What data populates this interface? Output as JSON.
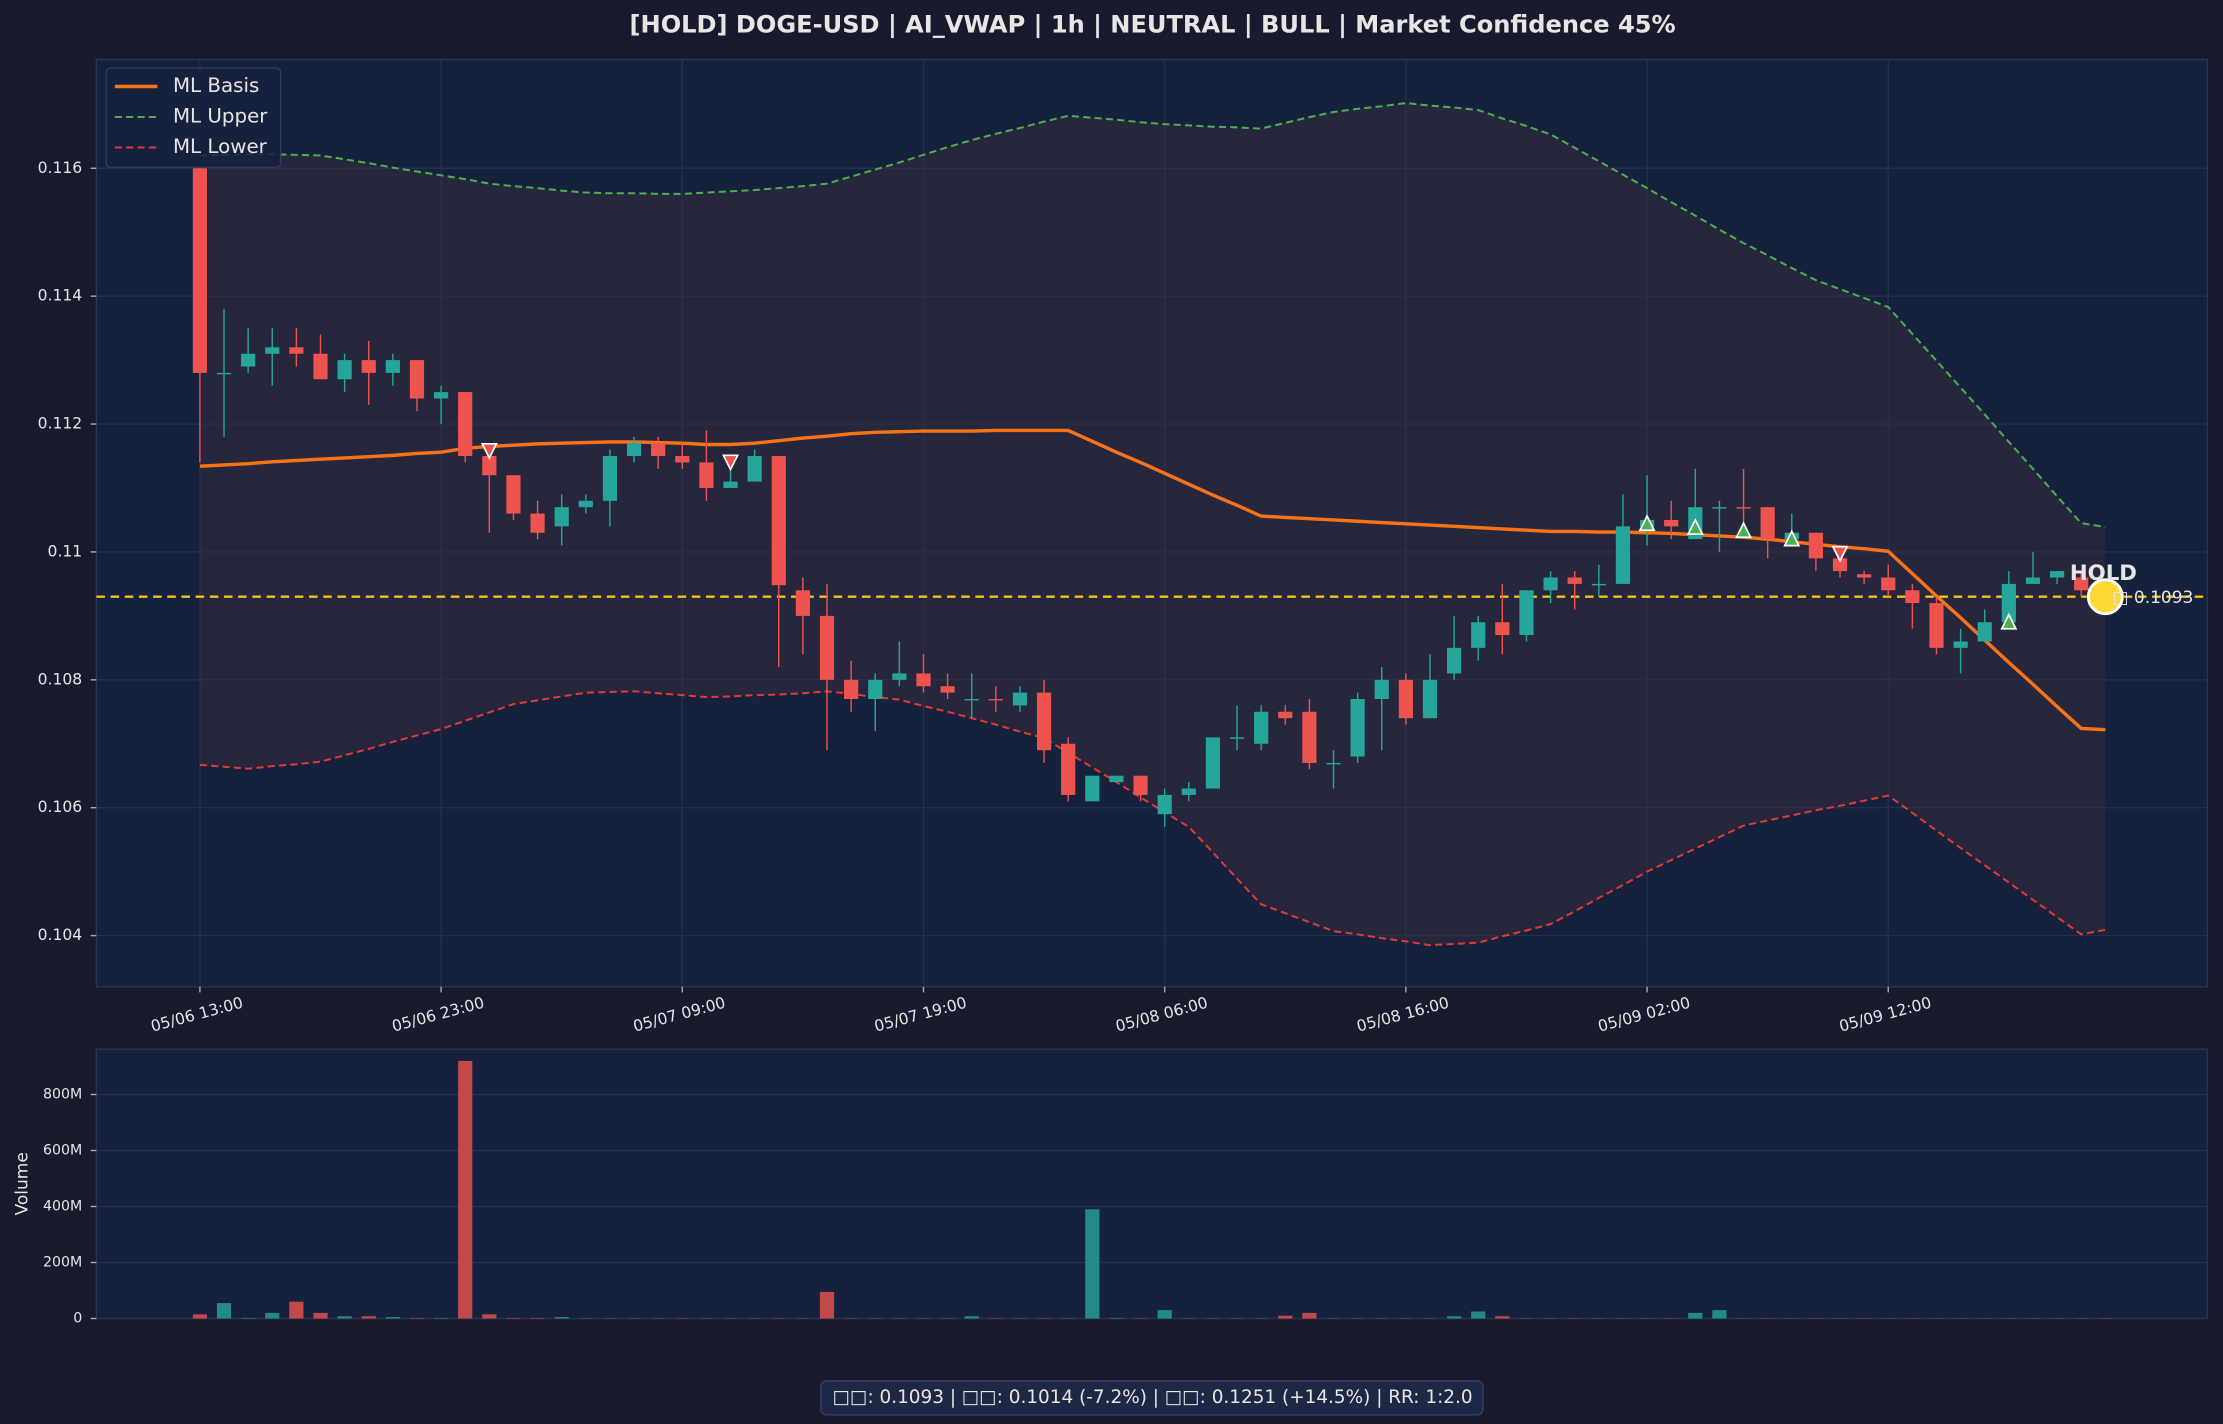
{
  "footer": "□□: 0.1093  |  □□: 0.1014 (-7.2%)  |  □□: 0.1251 (+14.5%)  |  RR: 1:2.0",
  "chart_data": [
    {
      "type": "candlestick",
      "title": "[HOLD] DOGE-USD  |  AI_VWAP | 1h  |  NEUTRAL | BULL  |  Market Confidence 45%",
      "categories": [
        "05/06 13:00",
        null,
        null,
        null,
        null,
        null,
        null,
        null,
        null,
        null,
        "05/06 23:00",
        null,
        null,
        null,
        null,
        null,
        null,
        null,
        null,
        null,
        "05/07 09:00",
        null,
        null,
        null,
        null,
        null,
        null,
        null,
        null,
        null,
        "05/07 19:00",
        null,
        null,
        null,
        null,
        null,
        null,
        null,
        null,
        null,
        "05/08 06:00",
        null,
        null,
        null,
        null,
        null,
        null,
        null,
        null,
        null,
        "05/08 16:00",
        null,
        null,
        null,
        null,
        null,
        null,
        null,
        null,
        null,
        "05/09 02:00",
        null,
        null,
        null,
        null,
        null,
        null,
        null,
        null,
        null,
        "05/09 12:00",
        null,
        null,
        null,
        null,
        null,
        null,
        null,
        null,
        null
      ],
      "open": [
        0.116,
        0.1128,
        0.1129,
        0.1131,
        0.1132,
        0.1131,
        0.1127,
        0.113,
        0.1128,
        0.113,
        0.1124,
        0.1125,
        0.1115,
        0.1112,
        0.1106,
        0.1104,
        0.1107,
        0.1108,
        0.1115,
        0.1117,
        0.1115,
        0.1114,
        0.111,
        0.1111,
        0.1115,
        0.1094,
        0.109,
        0.108,
        0.1077,
        0.108,
        0.1081,
        0.1079,
        0.1077,
        0.1077,
        0.1076,
        0.1078,
        0.107,
        0.1061,
        0.1064,
        0.1065,
        0.1059,
        0.1062,
        0.1063,
        0.1071,
        0.107,
        0.1075,
        0.1075,
        0.1067,
        0.1068,
        0.1077,
        0.108,
        0.1074,
        0.1081,
        0.1085,
        0.1089,
        0.1087,
        0.1094,
        0.1096,
        0.1095,
        0.1095,
        0.1104,
        0.1105,
        0.1102,
        0.1107,
        0.1107,
        0.1107,
        0.1102,
        0.1103,
        0.1099,
        0.10965,
        0.1096,
        0.1094,
        0.1092,
        0.1085,
        0.1086,
        0.1089,
        0.1095,
        0.1096,
        0.1096,
        0.1094
      ],
      "high": [
        0.116,
        0.1138,
        0.1135,
        0.1135,
        0.1135,
        0.1134,
        0.1131,
        0.1133,
        0.1131,
        0.113,
        0.1126,
        0.1125,
        0.1116,
        0.1112,
        0.1108,
        0.1109,
        0.1109,
        0.1116,
        0.1118,
        0.1118,
        0.1117,
        0.1119,
        0.1115,
        0.1116,
        0.1115,
        0.1096,
        0.1095,
        0.1083,
        0.1081,
        0.1086,
        0.1084,
        0.1081,
        0.1081,
        0.1079,
        0.1079,
        0.108,
        0.1071,
        0.1065,
        0.1065,
        0.1065,
        0.1063,
        0.1064,
        0.1071,
        0.1076,
        0.1076,
        0.1076,
        0.1077,
        0.1069,
        0.1078,
        0.1082,
        0.1081,
        0.1084,
        0.109,
        0.109,
        0.1095,
        0.1094,
        0.1097,
        0.1097,
        0.1098,
        0.1109,
        0.1112,
        0.1108,
        0.1113,
        0.1108,
        0.1113,
        0.1107,
        0.1106,
        0.1103,
        0.1099,
        0.1097,
        0.1098,
        0.1095,
        0.1093,
        0.1088,
        0.1091,
        0.1097,
        0.11,
        0.1097,
        0.1097,
        0.1094
      ],
      "low": [
        0.1114,
        0.1118,
        0.1128,
        0.1126,
        0.1129,
        0.1127,
        0.1125,
        0.1123,
        0.1126,
        0.1122,
        0.112,
        0.1114,
        0.1103,
        0.1105,
        0.1102,
        0.1101,
        0.1106,
        0.1104,
        0.1114,
        0.1113,
        0.1113,
        0.1108,
        0.111,
        0.1111,
        0.1082,
        0.1084,
        0.1069,
        0.1075,
        0.1072,
        0.1079,
        0.1078,
        0.1077,
        0.1074,
        0.1075,
        0.1075,
        0.1067,
        0.1061,
        0.1061,
        0.1064,
        0.1061,
        0.1057,
        0.1061,
        0.1063,
        0.1069,
        0.1069,
        0.1073,
        0.1066,
        0.1063,
        0.1067,
        0.1069,
        0.1073,
        0.1074,
        0.108,
        0.1083,
        0.1084,
        0.1086,
        0.1092,
        0.1091,
        0.1093,
        0.1095,
        0.1101,
        0.1102,
        0.1102,
        0.11,
        0.1104,
        0.1099,
        0.1101,
        0.1097,
        0.1096,
        0.1095,
        0.1093,
        0.1088,
        0.1084,
        0.1081,
        0.1086,
        0.1088,
        0.1095,
        0.1095,
        0.1093,
        0.1093
      ],
      "close": [
        0.1128,
        0.1128,
        0.1131,
        0.1132,
        0.1131,
        0.1127,
        0.113,
        0.1128,
        0.113,
        0.1124,
        0.1125,
        0.1115,
        0.1112,
        0.1106,
        0.1103,
        0.1107,
        0.1108,
        0.1115,
        0.1117,
        0.1115,
        0.1114,
        0.111,
        0.1111,
        0.1115,
        0.10948,
        0.109,
        0.108,
        0.1077,
        0.108,
        0.1081,
        0.1079,
        0.1078,
        0.1077,
        0.10768,
        0.1078,
        0.1069,
        0.1062,
        0.1065,
        0.1065,
        0.1062,
        0.1062,
        0.1063,
        0.1071,
        0.1071,
        0.1075,
        0.1074,
        0.1067,
        0.1067,
        0.1077,
        0.108,
        0.1074,
        0.108,
        0.1085,
        0.1089,
        0.1087,
        0.1094,
        0.1096,
        0.1095,
        0.1095,
        0.1104,
        0.1105,
        0.1104,
        0.1107,
        0.1107,
        0.11068,
        0.1102,
        0.1103,
        0.1099,
        0.1097,
        0.1096,
        0.1094,
        0.1092,
        0.1085,
        0.1086,
        0.1089,
        0.1095,
        0.1096,
        0.1097,
        0.1094,
        0.1093
      ],
      "up_color": "#26a69a",
      "down_color": "#ef5350",
      "series": [
        {
          "name": "ML Basis",
          "color": "#f97316",
          "style": "solid",
          "values": [
            0.11134,
            0.11136,
            0.11138,
            0.11141,
            0.11143,
            0.11145,
            0.11147,
            0.11149,
            0.11151,
            0.11154,
            0.11156,
            0.11162,
            0.11165,
            0.11167,
            0.11169,
            0.1117,
            0.11171,
            0.11172,
            0.11172,
            0.11171,
            0.1117,
            0.11168,
            0.11168,
            0.1117,
            0.11174,
            0.11178,
            0.11181,
            0.11185,
            0.11187,
            0.11188,
            0.11189,
            0.11189,
            0.11189,
            0.1119,
            0.1119,
            0.1119,
            0.1119,
            0.11173,
            0.11156,
            0.1114,
            0.11123,
            0.11106,
            0.11089,
            0.11073,
            0.11056,
            0.11054,
            0.11052,
            0.1105,
            0.11048,
            0.11046,
            0.11044,
            0.11042,
            0.1104,
            0.11038,
            0.11036,
            0.11034,
            0.11032,
            0.11032,
            0.11031,
            0.11031,
            0.1103,
            0.11029,
            0.11027,
            0.11025,
            0.11023,
            0.1102,
            0.11016,
            0.11012,
            0.11008,
            0.11005,
            0.11001,
            0.10966,
            0.10931,
            0.10897,
            0.10862,
            0.10827,
            0.10793,
            0.10758,
            0.10724,
            0.10722
          ]
        },
        {
          "name": "ML Upper",
          "color": "#4caf50",
          "style": "dashed",
          "values": [
            0.1162,
            0.11621,
            0.11622,
            0.11622,
            0.11621,
            0.1162,
            0.11614,
            0.11608,
            0.11601,
            0.11595,
            0.11589,
            0.11583,
            0.11576,
            0.11572,
            0.11569,
            0.11565,
            0.11562,
            0.11561,
            0.11561,
            0.1156,
            0.1156,
            0.11562,
            0.11564,
            0.11566,
            0.11569,
            0.11572,
            0.11576,
            0.11587,
            0.11598,
            0.11609,
            0.11621,
            0.11633,
            0.11644,
            0.11654,
            0.11663,
            0.11673,
            0.11682,
            0.11679,
            0.11676,
            0.11672,
            0.11669,
            0.11667,
            0.11665,
            0.11664,
            0.11662,
            0.11671,
            0.1168,
            0.11688,
            0.11693,
            0.11697,
            0.11702,
            0.11698,
            0.11695,
            0.11691,
            0.11678,
            0.11666,
            0.11653,
            0.11632,
            0.11611,
            0.1159,
            0.11569,
            0.11547,
            0.11526,
            0.11504,
            0.11483,
            0.11464,
            0.11444,
            0.11425,
            0.11411,
            0.11397,
            0.11383,
            0.11341,
            0.11299,
            0.11257,
            0.11215,
            0.11172,
            0.1113,
            0.11087,
            0.11045,
            0.11039
          ]
        },
        {
          "name": "ML Lower",
          "color": "#e53935",
          "style": "dashed",
          "values": [
            0.10667,
            0.10664,
            0.10661,
            0.10665,
            0.10668,
            0.10672,
            0.10682,
            0.10692,
            0.10703,
            0.10713,
            0.10723,
            0.10736,
            0.10749,
            0.10762,
            0.10768,
            0.10774,
            0.1078,
            0.10781,
            0.10782,
            0.10779,
            0.10776,
            0.10773,
            0.10774,
            0.10776,
            0.10777,
            0.10779,
            0.10782,
            0.10778,
            0.10773,
            0.10769,
            0.10759,
            0.1075,
            0.1074,
            0.1073,
            0.10719,
            0.10709,
            0.10686,
            0.10663,
            0.1064,
            0.10616,
            0.10593,
            0.1057,
            0.1053,
            0.10489,
            0.10449,
            0.10435,
            0.10421,
            0.10407,
            0.10402,
            0.10396,
            0.10391,
            0.10385,
            0.10387,
            0.10389,
            0.10399,
            0.10408,
            0.10418,
            0.10438,
            0.10459,
            0.10479,
            0.105,
            0.10518,
            0.10536,
            0.10554,
            0.10572,
            0.1058,
            0.10588,
            0.10596,
            0.10603,
            0.10611,
            0.10619,
            0.10592,
            0.10564,
            0.10537,
            0.1051,
            0.10483,
            0.10456,
            0.10429,
            0.10402,
            0.10409
          ]
        }
      ],
      "sell_signals": {
        "index": [
          12,
          22,
          68
        ],
        "values": [
          0.11158,
          0.1114,
          0.10997
        ]
      },
      "buy_signals": {
        "index": [
          60,
          62,
          64,
          66,
          75
        ],
        "values": [
          0.11045,
          0.11039,
          0.11034,
          0.11021,
          0.10891
        ]
      },
      "hold_line": {
        "value": 0.1093,
        "color": "#f0c419",
        "label": "HOLD",
        "value_label": "□ 0.1093"
      },
      "ylim": [
        0.1032,
        0.1177
      ],
      "yticks": [
        0.104,
        0.106,
        0.108,
        0.11,
        0.112,
        0.114,
        0.116
      ],
      "grid": true,
      "legend": "upper left"
    },
    {
      "type": "bar",
      "ylabel": "Volume",
      "values": [
        15000000,
        55000000,
        2000000,
        20000000,
        60000000,
        20000000,
        8000000,
        8000000,
        5000000,
        2000000,
        2000000,
        920000000,
        15000000,
        2000000,
        2000000,
        5000000,
        1000000,
        1000000,
        1000000,
        1000000,
        1000000,
        1000000,
        1000000,
        1000000,
        1000000,
        1000000,
        95000000,
        1000000,
        1000000,
        1000000,
        1000000,
        1000000,
        8000000,
        1000000,
        1000000,
        1000000,
        1000000,
        390000000,
        2000000,
        1000000,
        30000000,
        1000000,
        1000000,
        1000000,
        1000000,
        10000000,
        20000000,
        1000000,
        1000000,
        1000000,
        1000000,
        1000000,
        8000000,
        25000000,
        8000000,
        1000000,
        1000000,
        1000000,
        1000000,
        1000000,
        1000000,
        1000000,
        20000000,
        30000000,
        1000000,
        1000000,
        1000000,
        1000000,
        1000000,
        1000000,
        1000000,
        1000000,
        1000000,
        1000000,
        1000000,
        1000000,
        1000000,
        1000000,
        1000000,
        1000000
      ],
      "ylim": [
        0,
        962000000
      ],
      "yticks": [
        0,
        {
          "value": 200000000,
          "label": "200M"
        },
        {
          "value": 400000000,
          "label": "400M"
        },
        {
          "value": 600000000,
          "label": "600M"
        },
        {
          "value": 800000000,
          "label": "800M"
        }
      ],
      "grid": true
    }
  ]
}
